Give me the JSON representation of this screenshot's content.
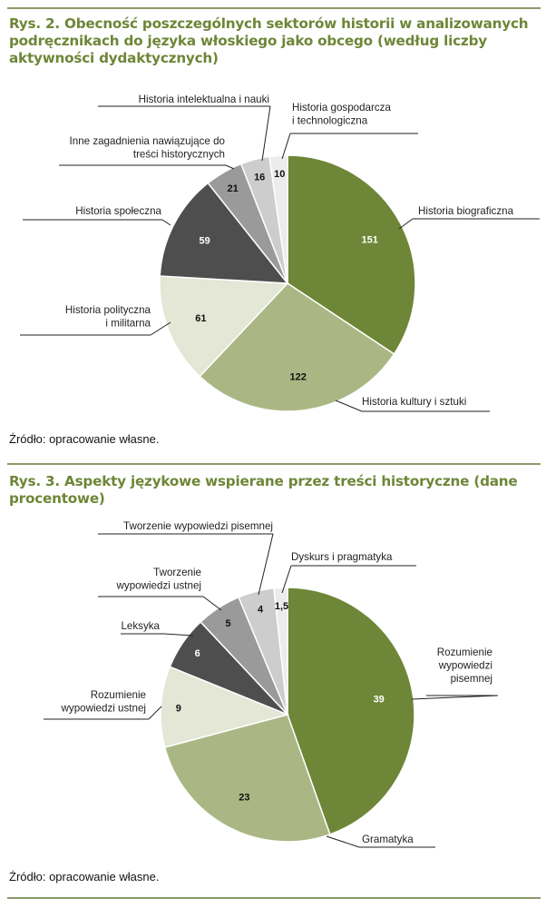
{
  "figure1": {
    "title": "Rys. 2. Obecność poszczególnych sektorów historii w analizowanych podręcznikach do języka włoskiego jako obcego (według liczby aktywności dydaktycznych)",
    "source": "Źródło: opracowanie własne."
  },
  "figure2": {
    "title": "Rys. 3. Aspekty językowe wspierane przez treści historyczne (dane procentowe)",
    "source": "Źródło: opracowanie własne."
  },
  "chart_data": [
    {
      "type": "pie",
      "title": "Rys. 2. Obecność poszczególnych sektorów historii w analizowanych podręcznikach do języka włoskiego jako obcego (według liczby aktywności dydaktycznych)",
      "slices": [
        {
          "label": "Historia biograficzna",
          "value": 151,
          "value_text": "151",
          "color": "#6e8637"
        },
        {
          "label": "Historia kultury i sztuki",
          "value": 122,
          "value_text": "122",
          "color": "#aab784"
        },
        {
          "label": "Historia polityczna i militarna",
          "value": 61,
          "value_text": "61",
          "color": "#e4e6d6"
        },
        {
          "label": "Historia społeczna",
          "value": 59,
          "value_text": "59",
          "color": "#4e4e4e"
        },
        {
          "label": "Inne zagadnienia nawiązujące do treści historycznych",
          "value": 21,
          "value_text": "21",
          "color": "#9a9a9a"
        },
        {
          "label": "Historia intelektualna i nauki",
          "value": 16,
          "value_text": "16",
          "color": "#cdcdcd"
        },
        {
          "label": "Historia gospodarcza i technologiczna",
          "value": 10,
          "value_text": "10",
          "color": "#ececec"
        }
      ]
    },
    {
      "type": "pie",
      "title": "Rys. 3. Aspekty językowe wspierane przez treści historyczne (dane procentowe)",
      "slices": [
        {
          "label": "Rozumienie wypowiedzi pisemnej",
          "value": 39,
          "value_text": "39",
          "color": "#6e8637"
        },
        {
          "label": "Gramatyka",
          "value": 23,
          "value_text": "23",
          "color": "#aab784"
        },
        {
          "label": "Rozumienie wypowiedzi ustnej",
          "value": 9,
          "value_text": "9",
          "color": "#e4e6d6"
        },
        {
          "label": "Leksyka",
          "value": 6,
          "value_text": "6",
          "color": "#4e4e4e"
        },
        {
          "label": "Tworzenie wypowiedzi ustnej",
          "value": 5,
          "value_text": "5",
          "color": "#9a9a9a"
        },
        {
          "label": "Tworzenie wypowiedzi pisemnej",
          "value": 4,
          "value_text": "4",
          "color": "#cdcdcd"
        },
        {
          "label": "Dyskurs i pragmatyka",
          "value": 1.5,
          "value_text": "1,5",
          "color": "#ececec"
        }
      ]
    }
  ]
}
